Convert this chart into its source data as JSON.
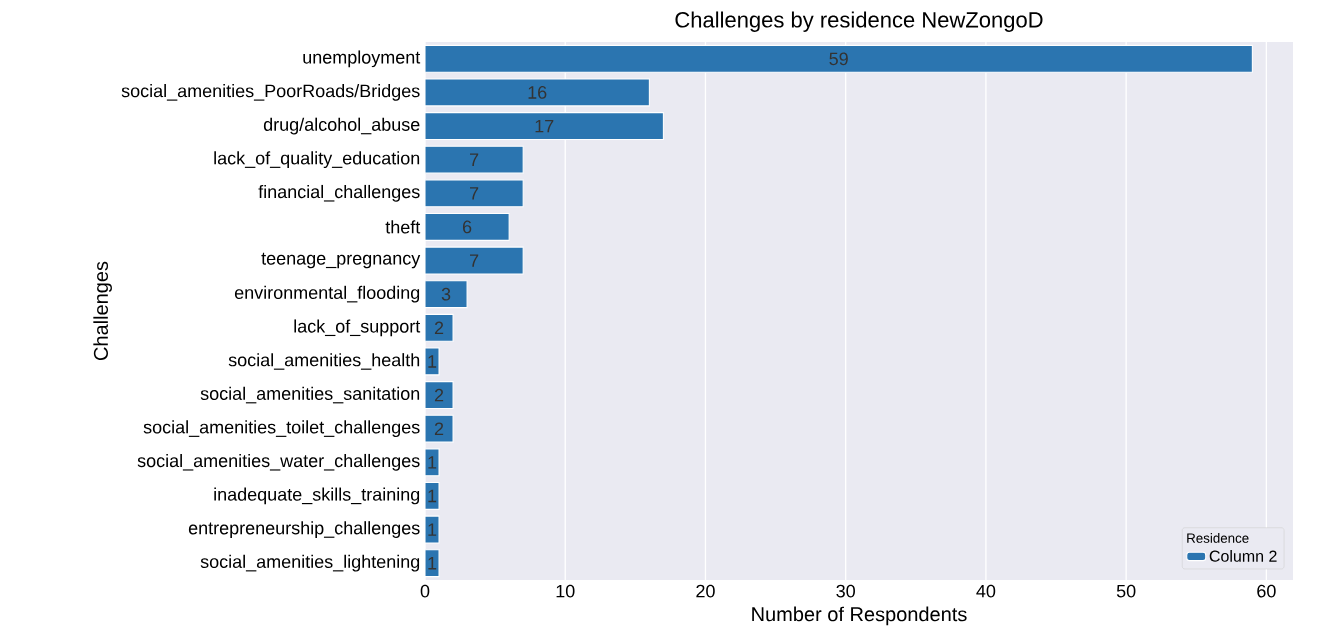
{
  "chart_data": {
    "type": "bar",
    "orientation": "horizontal",
    "title": "Challenges by residence NewZongoD",
    "xlabel": "Number of Respondents",
    "ylabel": "Challenges",
    "legend_title": "Residence",
    "categories": [
      "unemployment",
      "social_amenities_PoorRoads/Bridges",
      "drug/alcohol_abuse",
      "lack_of_quality_education",
      "financial_challenges",
      "theft",
      "teenage_pregnancy",
      "environmental_flooding",
      "lack_of_support",
      "social_amenities_health",
      "social_amenities_sanitation",
      "social_amenities_toilet_challenges",
      "social_amenities_water_challenges",
      "inadequate_skills_training",
      "entrepreneurship_challenges",
      "social_amenities_lightening"
    ],
    "series": [
      {
        "name": "Column 2",
        "color": "#2b75b0",
        "values": [
          59,
          16,
          17,
          7,
          7,
          6,
          7,
          3,
          2,
          1,
          2,
          2,
          1,
          1,
          1,
          1
        ]
      }
    ],
    "xlim": [
      0,
      61.9
    ],
    "xticks": [
      0,
      10,
      20,
      30,
      40,
      50,
      60
    ],
    "grid": "x",
    "legend": "bottom right",
    "data_labels": true
  }
}
